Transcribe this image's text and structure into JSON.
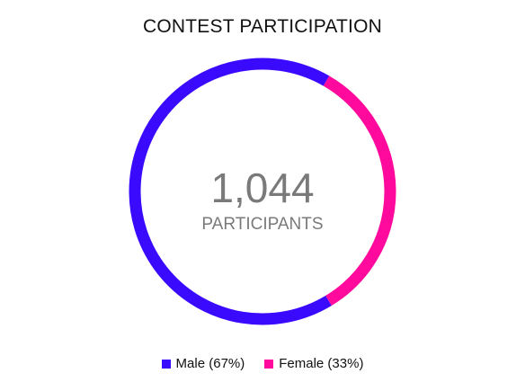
{
  "chart_data": {
    "type": "pie",
    "title": "CONTEST PARTICIPATION",
    "center_value": "1,044",
    "center_label": "PARTICIPANTS",
    "legend_position": "bottom",
    "series": [
      {
        "name": "Male (67%)",
        "value": 67,
        "color": "#3a0aff"
      },
      {
        "name": "Female (33%)",
        "value": 33,
        "color": "#ff0a9c"
      }
    ]
  }
}
